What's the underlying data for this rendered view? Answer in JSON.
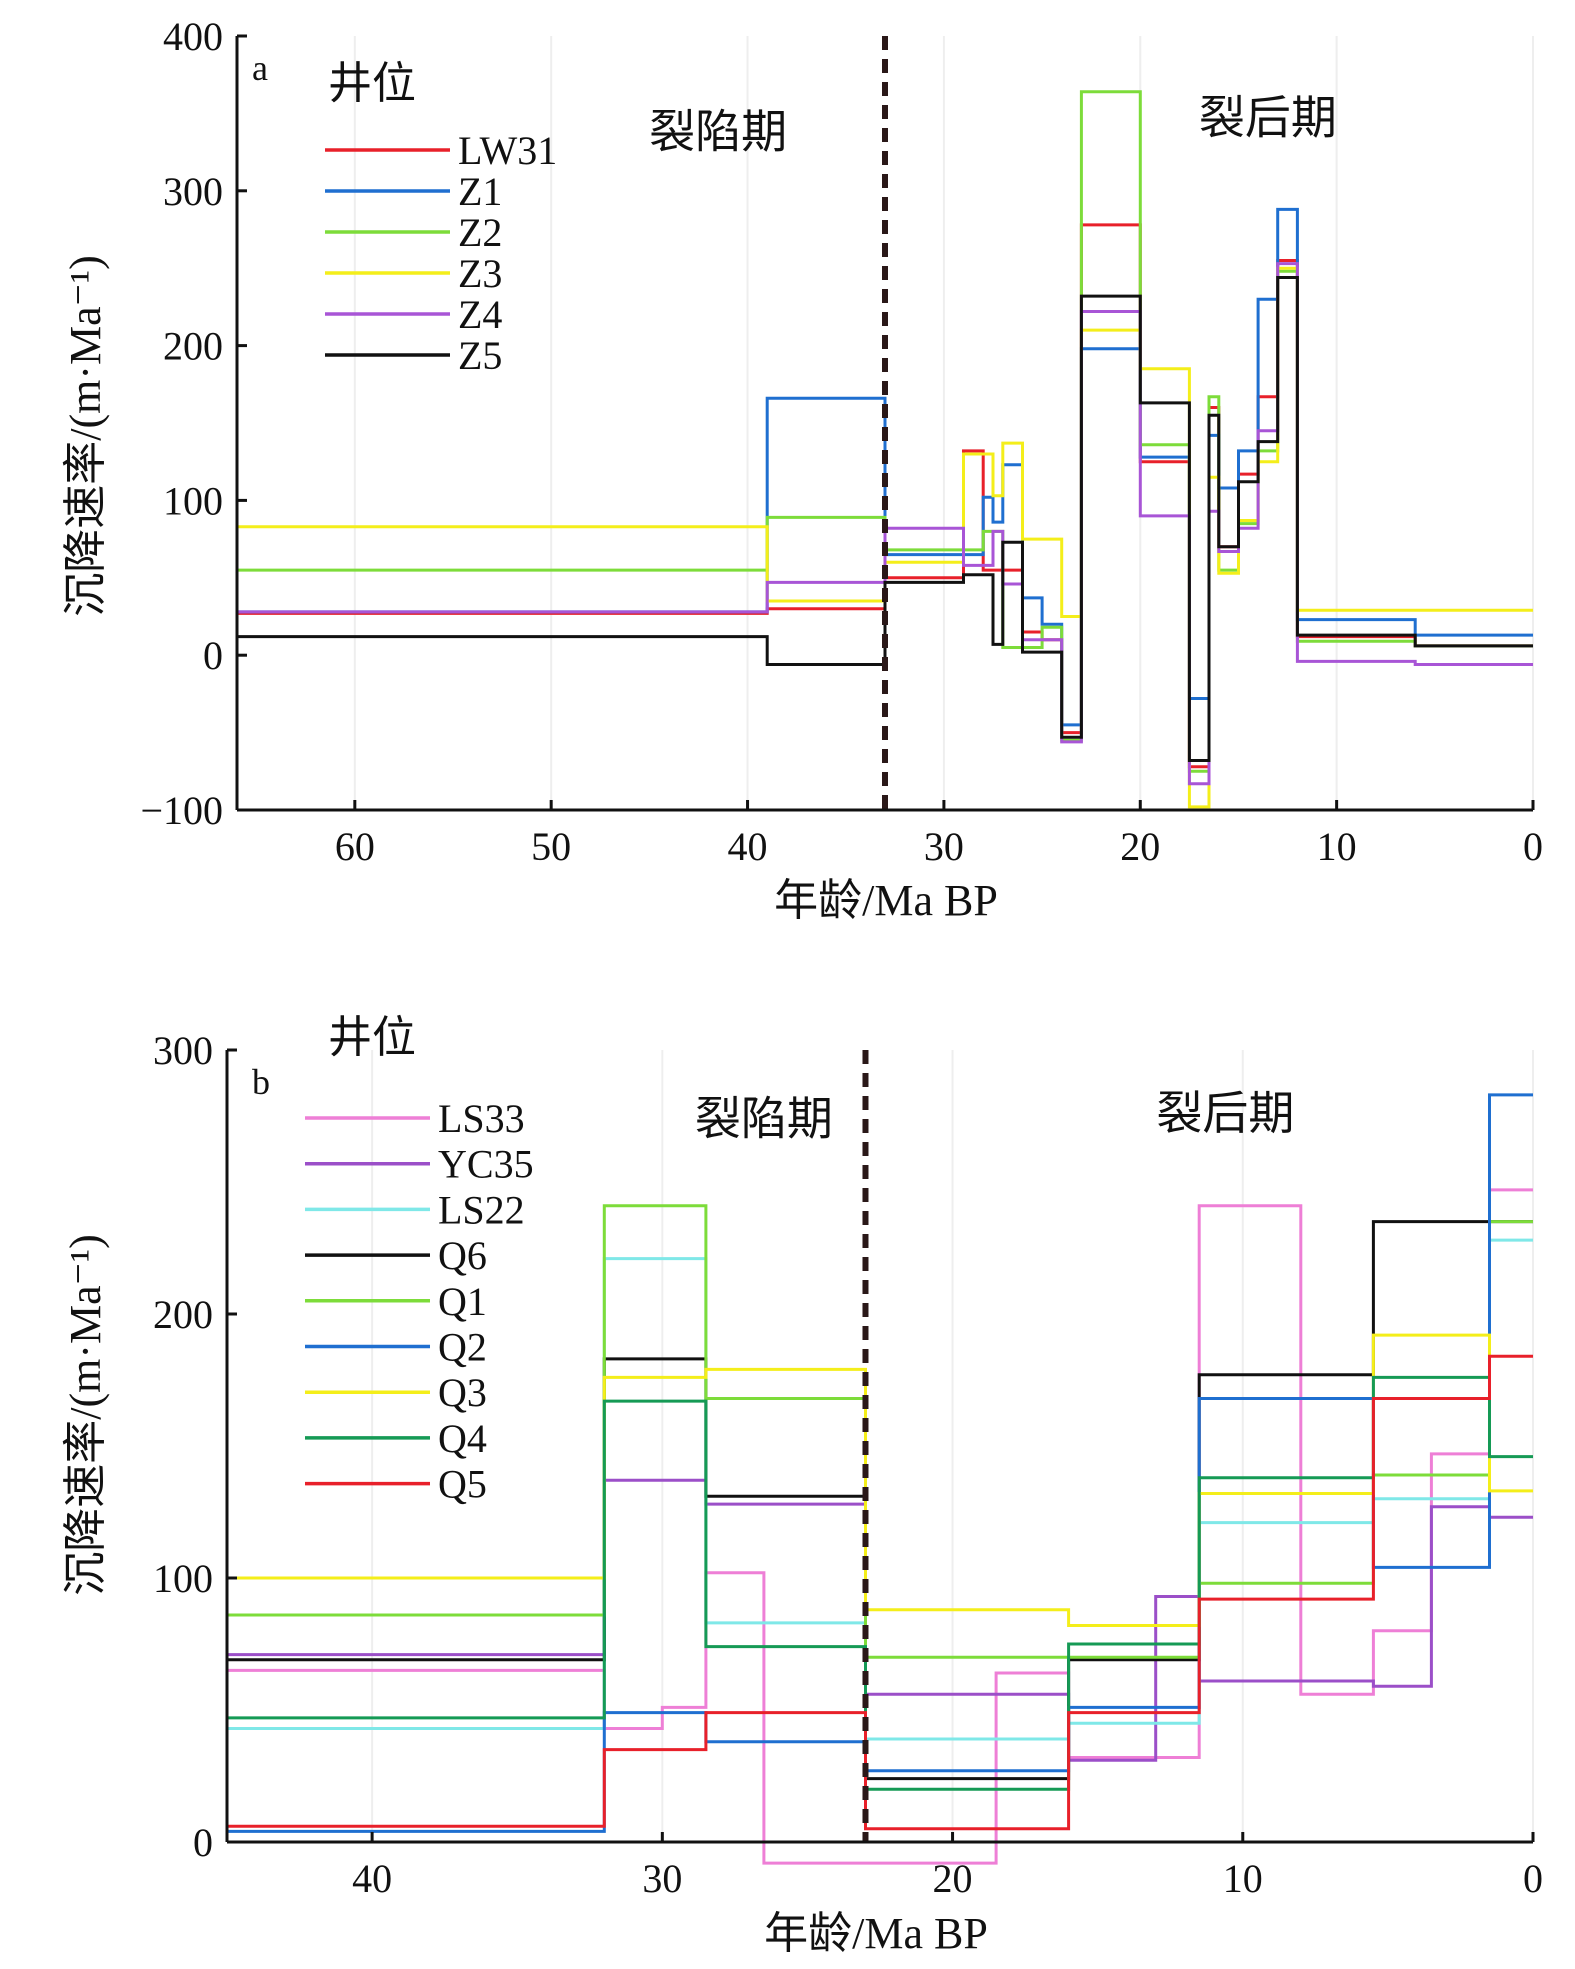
{
  "chart_data": [
    {
      "panel": "a",
      "type": "line",
      "step": true,
      "xlabel": "年龄/Ma BP",
      "ylabel": "沉降速率/(m·Ma⁻¹)",
      "xlim": [
        66,
        0
      ],
      "ylim": [
        -100,
        400
      ],
      "xticks": [
        60,
        50,
        40,
        30,
        20,
        10,
        0
      ],
      "yticks": [
        -100,
        0,
        100,
        200,
        300,
        400
      ],
      "ytick_labels": [
        "−100",
        "0",
        "100",
        "200",
        "300",
        "400"
      ],
      "legend_title": "井位",
      "legend_position": "top-left",
      "divider_x": 33,
      "annotations": [
        {
          "text": "裂陷期",
          "x": 41.5,
          "y": 328
        },
        {
          "text": "裂后期",
          "x": 13.5,
          "y": 337
        }
      ],
      "series": [
        {
          "name": "LW31",
          "color": "#e8202a",
          "x": [
            66,
            39,
            39,
            33,
            33,
            29,
            29,
            28,
            28,
            27.5,
            27.5,
            26,
            26,
            25,
            25,
            24,
            24,
            23,
            23,
            20,
            20,
            18,
            18,
            17.5,
            17.5,
            16.5,
            16.5,
            16,
            16,
            15,
            15,
            14,
            14,
            13,
            13,
            12,
            12,
            6,
            6,
            0
          ],
          "y": [
            27,
            27,
            30,
            30,
            50,
            50,
            132,
            132,
            55,
            55,
            55,
            55,
            15,
            15,
            10,
            10,
            -50,
            -50,
            278,
            278,
            125,
            125,
            125,
            125,
            -72,
            -72,
            160,
            160,
            70,
            70,
            117,
            117,
            167,
            167,
            255,
            255,
            12,
            12,
            6,
            6
          ]
        },
        {
          "name": "Z1",
          "color": "#1f6fd0",
          "x": [
            66,
            39,
            39,
            33,
            33,
            29,
            29,
            28,
            28,
            27.5,
            27.5,
            27,
            27,
            26.5,
            26.5,
            26,
            26,
            25,
            25,
            24,
            24,
            23,
            23,
            20,
            20,
            18,
            18,
            17.5,
            17.5,
            16.5,
            16.5,
            16,
            16,
            15,
            15,
            14,
            14,
            13,
            13,
            12,
            12,
            6,
            6,
            0
          ],
          "y": [
            28,
            28,
            166,
            166,
            65,
            65,
            65,
            65,
            102,
            102,
            86,
            86,
            123,
            123,
            123,
            123,
            37,
            37,
            20,
            20,
            -45,
            -45,
            198,
            198,
            128,
            128,
            128,
            128,
            -28,
            -28,
            142,
            142,
            108,
            108,
            132,
            132,
            230,
            230,
            288,
            288,
            23,
            23,
            13,
            13
          ]
        },
        {
          "name": "Z2",
          "color": "#7ddc3a",
          "x": [
            66,
            39,
            39,
            33,
            33,
            29,
            29,
            28,
            28,
            27,
            27,
            26,
            26,
            25,
            25,
            24,
            24,
            23,
            23,
            20,
            20,
            18,
            18,
            17.5,
            17.5,
            16.5,
            16.5,
            16,
            16,
            15,
            15,
            14,
            14,
            13,
            13,
            12,
            12,
            6,
            6,
            0
          ],
          "y": [
            55,
            55,
            89,
            89,
            68,
            68,
            68,
            68,
            80,
            80,
            5,
            5,
            5,
            5,
            18,
            18,
            -55,
            -55,
            364,
            364,
            136,
            136,
            136,
            136,
            -75,
            -75,
            167,
            167,
            55,
            55,
            85,
            85,
            132,
            132,
            248,
            248,
            9,
            9,
            6,
            6
          ]
        },
        {
          "name": "Z3",
          "color": "#f4ee1a",
          "x": [
            66,
            39,
            39,
            33,
            33,
            29,
            29,
            28,
            28,
            27.5,
            27.5,
            27,
            27,
            26,
            26,
            24,
            24,
            23,
            23,
            20,
            20,
            18,
            18,
            17.5,
            17.5,
            16.5,
            16.5,
            16,
            16,
            15,
            15,
            14,
            14,
            13,
            13,
            12,
            12,
            0
          ],
          "y": [
            83,
            83,
            35,
            35,
            60,
            60,
            130,
            130,
            130,
            130,
            103,
            103,
            137,
            137,
            75,
            75,
            25,
            25,
            210,
            210,
            185,
            185,
            185,
            185,
            -98,
            -98,
            115,
            115,
            53,
            53,
            87,
            87,
            125,
            125,
            250,
            250,
            29,
            29
          ]
        },
        {
          "name": "Z4",
          "color": "#a855d6",
          "x": [
            66,
            39,
            39,
            33,
            33,
            29,
            29,
            28,
            28,
            27.5,
            27.5,
            27,
            27,
            26,
            26,
            25,
            25,
            24,
            24,
            23,
            23,
            20,
            20,
            18,
            18,
            17.5,
            17.5,
            16.5,
            16.5,
            16,
            16,
            15,
            15,
            14,
            14,
            13,
            13,
            12,
            12,
            6,
            6,
            0
          ],
          "y": [
            28,
            28,
            47,
            47,
            82,
            82,
            58,
            58,
            58,
            58,
            80,
            80,
            46,
            46,
            10,
            10,
            10,
            10,
            -56,
            -56,
            222,
            222,
            90,
            90,
            90,
            90,
            -83,
            -83,
            93,
            93,
            67,
            67,
            82,
            82,
            145,
            145,
            253,
            253,
            -4,
            -4,
            -6,
            -6
          ]
        },
        {
          "name": "Z5",
          "color": "#111111",
          "x": [
            66,
            39,
            39,
            33,
            33,
            29,
            29,
            28,
            28,
            27.5,
            27.5,
            27,
            27,
            26,
            26,
            24,
            24,
            23,
            23,
            20,
            20,
            18,
            18,
            17.5,
            17.5,
            16.5,
            16.5,
            16,
            16,
            15,
            15,
            14,
            14,
            13,
            13,
            12,
            12,
            6,
            6,
            0
          ],
          "y": [
            12,
            12,
            -6,
            -6,
            47,
            47,
            52,
            52,
            52,
            52,
            7,
            7,
            73,
            73,
            2,
            2,
            -53,
            -53,
            232,
            232,
            163,
            163,
            163,
            163,
            -68,
            -68,
            155,
            155,
            70,
            70,
            112,
            112,
            138,
            138,
            244,
            244,
            13,
            13,
            6,
            6
          ]
        }
      ]
    },
    {
      "panel": "b",
      "type": "line",
      "step": true,
      "xlabel": "年龄/Ma BP",
      "ylabel": "沉降速率/(m·Ma⁻¹)",
      "xlim": [
        45,
        0
      ],
      "ylim": [
        0,
        300
      ],
      "xticks": [
        40,
        30,
        20,
        10,
        0
      ],
      "yticks": [
        0,
        100,
        200,
        300
      ],
      "ytick_labels": [
        "0",
        "100",
        "200",
        "300"
      ],
      "legend_title": "井位",
      "legend_position": "top-left",
      "divider_x": 23,
      "annotations": [
        {
          "text": "裂陷期",
          "x": 26.5,
          "y": 268
        },
        {
          "text": "裂后期",
          "x": 10.6,
          "y": 270
        }
      ],
      "series": [
        {
          "name": "LS33",
          "color": "#ee7fd6",
          "x": [
            45,
            32,
            32,
            30,
            30,
            28.5,
            28.5,
            26.5,
            26.5,
            23,
            23,
            18.5,
            18.5,
            16,
            16,
            13,
            13,
            11.5,
            11.5,
            8,
            8,
            5.5,
            5.5,
            3.5,
            3.5,
            1.5,
            1.5,
            0
          ],
          "y": [
            65,
            65,
            43,
            43,
            51,
            51,
            102,
            102,
            -8,
            -8,
            -8,
            -8,
            64,
            64,
            32,
            32,
            32,
            32,
            241,
            241,
            56,
            56,
            80,
            80,
            147,
            147,
            247,
            247
          ]
        },
        {
          "name": "YC35",
          "color": "#9b4fc8",
          "x": [
            45,
            32,
            32,
            28.5,
            28.5,
            23,
            23,
            16,
            16,
            13,
            13,
            11.5,
            11.5,
            5.5,
            5.5,
            3.5,
            3.5,
            1.5,
            1.5,
            0
          ],
          "y": [
            71,
            71,
            137,
            137,
            128,
            128,
            56,
            56,
            31,
            31,
            93,
            93,
            61,
            61,
            59,
            59,
            127,
            127,
            123,
            123
          ]
        },
        {
          "name": "LS22",
          "color": "#7fe8e8",
          "x": [
            45,
            32,
            32,
            28.5,
            28.5,
            23,
            23,
            16,
            16,
            13,
            13,
            11.5,
            11.5,
            5.5,
            5.5,
            3.5,
            3.5,
            1.5,
            1.5,
            0
          ],
          "y": [
            43,
            43,
            221,
            221,
            83,
            83,
            39,
            39,
            45,
            45,
            45,
            45,
            121,
            121,
            130,
            130,
            130,
            130,
            228,
            228
          ]
        },
        {
          "name": "Q6",
          "color": "#111111",
          "x": [
            45,
            32,
            32,
            28.5,
            28.5,
            23,
            23,
            16,
            16,
            11.5,
            11.5,
            5.5,
            5.5,
            0
          ],
          "y": [
            69,
            69,
            183,
            183,
            131,
            131,
            24,
            24,
            69,
            69,
            177,
            177,
            235,
            235
          ]
        },
        {
          "name": "Q1",
          "color": "#7ddc3a",
          "x": [
            45,
            32,
            32,
            28.5,
            28.5,
            23,
            23,
            16,
            16,
            11.5,
            11.5,
            5.5,
            5.5,
            1.5,
            1.5,
            0
          ],
          "y": [
            86,
            86,
            241,
            241,
            168,
            168,
            70,
            70,
            70,
            70,
            98,
            98,
            139,
            139,
            235,
            235
          ]
        },
        {
          "name": "Q2",
          "color": "#1f6fd0",
          "x": [
            45,
            32,
            32,
            28.5,
            28.5,
            23,
            23,
            16,
            16,
            11.5,
            11.5,
            5.5,
            5.5,
            1.5,
            1.5,
            0
          ],
          "y": [
            4,
            4,
            49,
            49,
            38,
            38,
            27,
            27,
            51,
            51,
            168,
            168,
            104,
            104,
            283,
            283
          ]
        },
        {
          "name": "Q3",
          "color": "#f4ee1a",
          "x": [
            45,
            32,
            32,
            28.5,
            28.5,
            23,
            23,
            16,
            16,
            11.5,
            11.5,
            5.5,
            5.5,
            1.5,
            1.5,
            0
          ],
          "y": [
            100,
            100,
            176,
            176,
            179,
            179,
            88,
            88,
            82,
            82,
            132,
            132,
            192,
            192,
            133,
            133
          ]
        },
        {
          "name": "Q4",
          "color": "#159a55",
          "x": [
            45,
            32,
            32,
            28.5,
            28.5,
            23,
            23,
            16,
            16,
            11.5,
            11.5,
            5.5,
            5.5,
            1.5,
            1.5,
            0
          ],
          "y": [
            47,
            47,
            167,
            167,
            74,
            74,
            20,
            20,
            75,
            75,
            138,
            138,
            176,
            176,
            146,
            146
          ]
        },
        {
          "name": "Q5",
          "color": "#e8202a",
          "x": [
            45,
            32,
            32,
            28.5,
            28.5,
            23,
            23,
            16,
            16,
            11.5,
            11.5,
            5.5,
            5.5,
            1.5,
            1.5,
            0
          ],
          "y": [
            6,
            6,
            35,
            35,
            49,
            49,
            5,
            5,
            49,
            49,
            92,
            92,
            168,
            168,
            184,
            184
          ]
        }
      ]
    }
  ]
}
